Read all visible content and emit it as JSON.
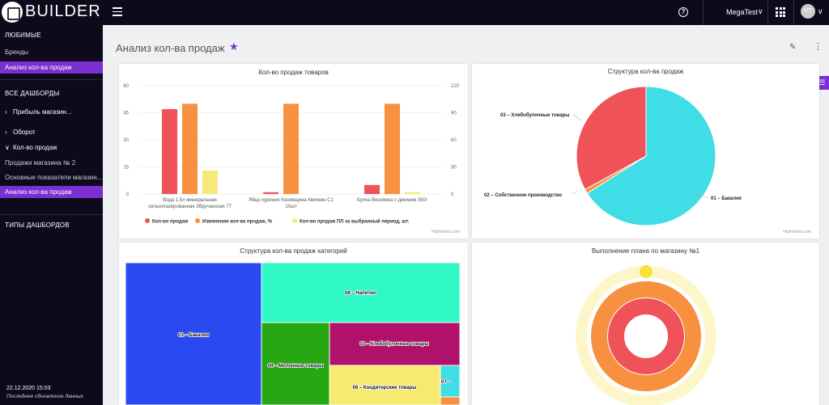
{
  "header": {
    "brand": "BUILDER",
    "user_name": "MegaTest",
    "avatar_initials": "MT"
  },
  "sidebar": {
    "favorites_heading": "ЛЮБИМЫЕ",
    "favorites": [
      {
        "label": "Бренды",
        "active": false
      },
      {
        "label": "Анализ кол-ва продаж",
        "active": true
      }
    ],
    "all_heading": "ВСЕ ДАШБОРДЫ",
    "groups": [
      {
        "label": "Прибыль магазин...",
        "expanded": false
      },
      {
        "label": "Оборот",
        "expanded": false
      },
      {
        "label": "Кол-во продаж",
        "expanded": true
      }
    ],
    "subitems": [
      {
        "label": "Продажи магазина № 2",
        "active": false
      },
      {
        "label": "Основные показатели магазин...",
        "active": false
      },
      {
        "label": "Анализ кол-ва продаж",
        "active": true
      }
    ],
    "types_heading": "ТИПЫ ДАШБОРДОВ",
    "date": "22.12.2020 15:03",
    "updated_label": "Последнее обновление данных"
  },
  "page": {
    "title": "Анализ кол-ва продаж"
  },
  "colors": {
    "accent": "#7b2fd0",
    "sidebar_bg": "#0d0a1c",
    "red": "#f0525a",
    "orange": "#f7913f",
    "yellow": "#f6e97a",
    "cyan": "#3fdde6"
  },
  "cards": {
    "bar_title": "Кол-во продаж товаров",
    "pie_title": "Структура кол-ва продаж",
    "treemap_title": "Структура кол-ва продаж категорий",
    "gauge_title": "Выполнение плана по магазину №1",
    "credits": "Highcharts.com"
  },
  "chart_data": [
    {
      "type": "bar",
      "title": "Кол-во продаж товаров",
      "categories": [
        "Вода 1,5л минеральная сильногазированная Збручанская 77",
        "Яйцо куриное Косивщина Квочкин С1 10шт",
        "Булка Веснянка с джемом 350г"
      ],
      "category_lines": [
        [
          "Вода 1,5л минеральная",
          "сильногазированная Збручанская 77"
        ],
        [
          "Яйцо куриное Косивщина Квочкин С1",
          "10шт"
        ],
        [
          "Булка Веснянка с джемом 350г"
        ]
      ],
      "left_axis": {
        "ticks": [
          0,
          15,
          30,
          45,
          60
        ],
        "ylim": [
          0,
          60
        ]
      },
      "right_axis": {
        "ticks": [
          0,
          30,
          60,
          90,
          120
        ],
        "ylim": [
          0,
          120
        ]
      },
      "series": [
        {
          "name": "Кол-во продаж",
          "color": "#f0525a",
          "axis": "left",
          "values": [
            47,
            1,
            5
          ]
        },
        {
          "name": "Изменение кол-ва продаж, %",
          "color": "#f7913f",
          "axis": "right",
          "values": [
            100,
            100,
            100
          ]
        },
        {
          "name": "Кол-во продаж ПЛ за выбранный период, шт.",
          "color": "#f6e97a",
          "axis": "left",
          "values": [
            13,
            0,
            1
          ]
        }
      ],
      "legend": "bottom"
    },
    {
      "type": "pie",
      "title": "Структура кол-ва продаж",
      "slices": [
        {
          "label": "01 – Бакалея",
          "value": 66,
          "color": "#3fdde6"
        },
        {
          "label": "02 – Собственное производство",
          "value": 1,
          "color": "#f7913f"
        },
        {
          "label": "03 – Хлебобулочные товары",
          "value": 33,
          "color": "#f0525a"
        }
      ]
    },
    {
      "type": "heatmap",
      "title": "Структура кол-ва продаж категорий",
      "note": "treemap",
      "cells": [
        {
          "label": "01 – Бакалея",
          "color": "#2a49f0"
        },
        {
          "label": "08 – Напитки",
          "color": "#30f7c6"
        },
        {
          "label": "04 – Молочные товары",
          "color": "#27a813"
        },
        {
          "label": "03 – Хлебобулочные товары",
          "color": "#b0116a"
        },
        {
          "label": "06 – Кондитерские товары",
          "color": "#f6ea71"
        },
        {
          "label": "07 –",
          "color": "#3fdde6"
        },
        {
          "label": "",
          "color": "#f7913f"
        }
      ]
    },
    {
      "type": "pie",
      "title": "Выполнение плана по магазину №1",
      "note": "solid gauge rings",
      "rings": [
        {
          "color": "#fcf6c8"
        },
        {
          "color": "#f7913f"
        },
        {
          "color": "#f0525a"
        }
      ]
    }
  ]
}
